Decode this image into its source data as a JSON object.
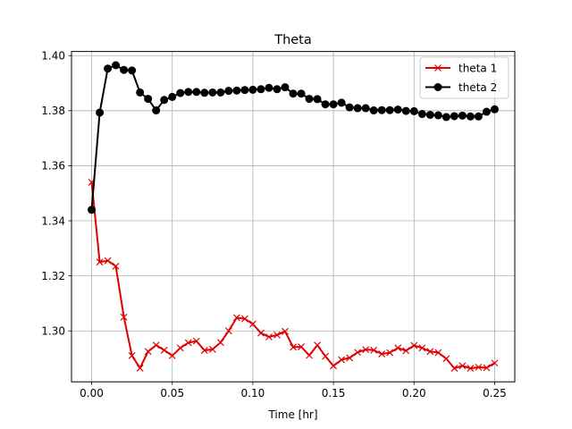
{
  "chart_data": {
    "type": "line",
    "title": "Theta",
    "xlabel": "Time [hr]",
    "ylabel": "",
    "xlim": [
      -0.0125,
      0.2625
    ],
    "ylim": [
      1.2815,
      1.4015
    ],
    "xticks": [
      0.0,
      0.05,
      0.1,
      0.15,
      0.2,
      0.25
    ],
    "xtick_labels": [
      "0.00",
      "0.05",
      "0.10",
      "0.15",
      "0.20",
      "0.25"
    ],
    "yticks": [
      1.3,
      1.32,
      1.34,
      1.36,
      1.38,
      1.4
    ],
    "ytick_labels": [
      "1.30",
      "1.32",
      "1.34",
      "1.36",
      "1.38",
      "1.40"
    ],
    "grid": true,
    "legend": "top-right",
    "x": [
      0.0,
      0.005,
      0.01,
      0.015,
      0.02,
      0.025,
      0.03,
      0.035,
      0.04,
      0.045,
      0.05,
      0.055,
      0.06,
      0.065,
      0.07,
      0.075,
      0.08,
      0.085,
      0.09,
      0.095,
      0.1,
      0.105,
      0.11,
      0.115,
      0.12,
      0.125,
      0.13,
      0.135,
      0.14,
      0.145,
      0.15,
      0.155,
      0.16,
      0.165,
      0.17,
      0.175,
      0.18,
      0.185,
      0.19,
      0.195,
      0.2,
      0.205,
      0.21,
      0.215,
      0.22,
      0.225,
      0.23,
      0.235,
      0.24,
      0.245,
      0.25
    ],
    "series": [
      {
        "name": "theta 1",
        "color": "#e00000",
        "marker": "x",
        "values": [
          1.354,
          1.325,
          1.3255,
          1.3235,
          1.305,
          1.291,
          1.2865,
          1.2925,
          1.2948,
          1.293,
          1.291,
          1.2938,
          1.2957,
          1.2963,
          1.2929,
          1.2933,
          1.2958,
          1.3,
          1.3048,
          1.3044,
          1.3025,
          1.2992,
          1.2978,
          1.2985,
          1.2998,
          1.2941,
          1.2942,
          1.2911,
          1.2948,
          1.2908,
          1.2873,
          1.2895,
          1.2902,
          1.2922,
          1.2932,
          1.293,
          1.2916,
          1.2921,
          1.2938,
          1.2928,
          1.2947,
          1.2938,
          1.2925,
          1.2921,
          1.2899,
          1.2864,
          1.2873,
          1.2864,
          1.2868,
          1.2866,
          1.2883
        ]
      },
      {
        "name": "theta 2",
        "color": "#000000",
        "marker": "o",
        "values": [
          1.344,
          1.3793,
          1.3953,
          1.3965,
          1.3948,
          1.3946,
          1.3866,
          1.3843,
          1.3801,
          1.3839,
          1.385,
          1.3864,
          1.3868,
          1.3868,
          1.3865,
          1.3866,
          1.3866,
          1.3872,
          1.3873,
          1.3875,
          1.3876,
          1.3878,
          1.3883,
          1.3878,
          1.3885,
          1.3862,
          1.3862,
          1.3843,
          1.3842,
          1.3823,
          1.3823,
          1.3829,
          1.3812,
          1.3809,
          1.3809,
          1.3801,
          1.3802,
          1.3802,
          1.3804,
          1.3799,
          1.3798,
          1.3788,
          1.3785,
          1.3783,
          1.3777,
          1.378,
          1.3782,
          1.3779,
          1.3779,
          1.3796,
          1.3805
        ]
      }
    ]
  }
}
